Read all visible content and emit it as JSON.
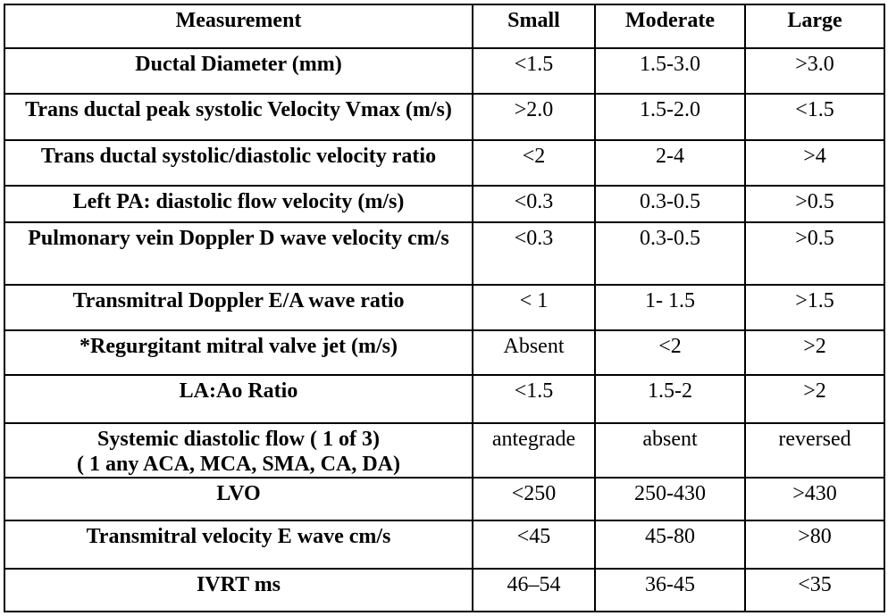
{
  "colors": {
    "text": "#000000",
    "border": "#000000",
    "background": "#ffffff"
  },
  "table": {
    "columns": [
      "Measurement",
      "Small",
      "Moderate",
      "Large"
    ],
    "rows": [
      {
        "measurement": "Ductal Diameter (mm)",
        "small": "<1.5",
        "moderate": "1.5-3.0",
        "large": ">3.0"
      },
      {
        "measurement": "Trans ductal peak systolic Velocity Vmax (m/s)",
        "small": ">2.0",
        "moderate": "1.5-2.0",
        "large": "<1.5"
      },
      {
        "measurement": "Trans ductal systolic/diastolic velocity ratio",
        "small": "<2",
        "moderate": "2-4",
        "large": ">4"
      },
      {
        "measurement": "Left PA: diastolic flow velocity (m/s)",
        "small": "<0.3",
        "moderate": "0.3-0.5",
        "large": ">0.5"
      },
      {
        "measurement": "Pulmonary vein Doppler D wave velocity cm/s",
        "small": "<0.3",
        "moderate": "0.3-0.5",
        "large": ">0.5"
      },
      {
        "measurement": "Transmitral Doppler E/A wave ratio",
        "small": "< 1",
        "moderate": "1- 1.5",
        "large": ">1.5"
      },
      {
        "measurement": "*Regurgitant mitral valve jet (m/s)",
        "small": "Absent",
        "moderate": "<2",
        "large": ">2"
      },
      {
        "measurement": "LA:Ao Ratio",
        "small": "<1.5",
        "moderate": "1.5-2",
        "large": ">2"
      },
      {
        "measurement": "Systemic diastolic flow ( 1 of 3)",
        "measurement_line2": "( 1 any ACA, MCA, SMA, CA, DA)",
        "small": "antegrade",
        "moderate": "absent",
        "large": "reversed"
      },
      {
        "measurement": "LVO",
        "small": "<250",
        "moderate": "250-430",
        "large": ">430"
      },
      {
        "measurement": "Transmitral velocity E wave cm/s",
        "small": "<45",
        "moderate": "45-80",
        "large": ">80"
      },
      {
        "measurement": "IVRT ms",
        "small": "46–54",
        "moderate": "36-45",
        "large": "<35"
      }
    ]
  }
}
